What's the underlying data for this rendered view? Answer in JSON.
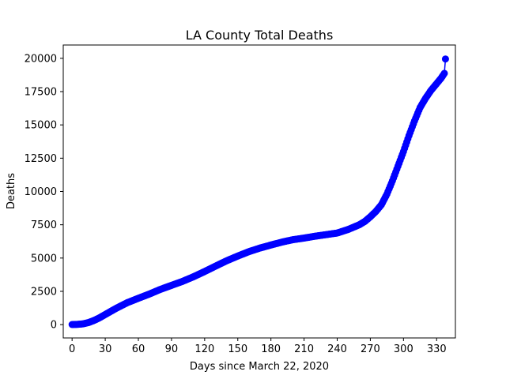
{
  "chart_data": {
    "type": "line",
    "title": "LA County Total Deaths",
    "xlabel": "Days since March 22, 2020",
    "ylabel": "Deaths",
    "xlim": [
      -8,
      347
    ],
    "ylim": [
      -1000,
      21000
    ],
    "xticks": [
      0,
      30,
      60,
      90,
      120,
      150,
      180,
      210,
      240,
      270,
      300,
      330
    ],
    "yticks": [
      0,
      2500,
      5000,
      7500,
      10000,
      12500,
      15000,
      17500,
      20000
    ],
    "grid": false,
    "marker": "circle",
    "color": "#0000ff",
    "anchors": [
      [
        0,
        8
      ],
      [
        5,
        20
      ],
      [
        10,
        60
      ],
      [
        15,
        160
      ],
      [
        20,
        320
      ],
      [
        25,
        520
      ],
      [
        30,
        760
      ],
      [
        40,
        1230
      ],
      [
        50,
        1650
      ],
      [
        60,
        1980
      ],
      [
        70,
        2300
      ],
      [
        80,
        2650
      ],
      [
        90,
        2950
      ],
      [
        100,
        3250
      ],
      [
        110,
        3600
      ],
      [
        120,
        3990
      ],
      [
        130,
        4400
      ],
      [
        140,
        4800
      ],
      [
        150,
        5150
      ],
      [
        160,
        5480
      ],
      [
        170,
        5750
      ],
      [
        180,
        5980
      ],
      [
        190,
        6200
      ],
      [
        200,
        6380
      ],
      [
        210,
        6500
      ],
      [
        220,
        6640
      ],
      [
        230,
        6760
      ],
      [
        240,
        6880
      ],
      [
        250,
        7150
      ],
      [
        260,
        7500
      ],
      [
        265,
        7750
      ],
      [
        270,
        8100
      ],
      [
        275,
        8500
      ],
      [
        280,
        9000
      ],
      [
        285,
        9800
      ],
      [
        290,
        10800
      ],
      [
        295,
        11900
      ],
      [
        300,
        13000
      ],
      [
        305,
        14200
      ],
      [
        310,
        15300
      ],
      [
        315,
        16300
      ],
      [
        320,
        17000
      ],
      [
        325,
        17600
      ],
      [
        330,
        18100
      ],
      [
        334,
        18500
      ],
      [
        337,
        18870
      ],
      [
        338,
        19950
      ]
    ]
  },
  "colors": {
    "series": "#0000ff",
    "axis": "#000000",
    "background": "#ffffff"
  }
}
